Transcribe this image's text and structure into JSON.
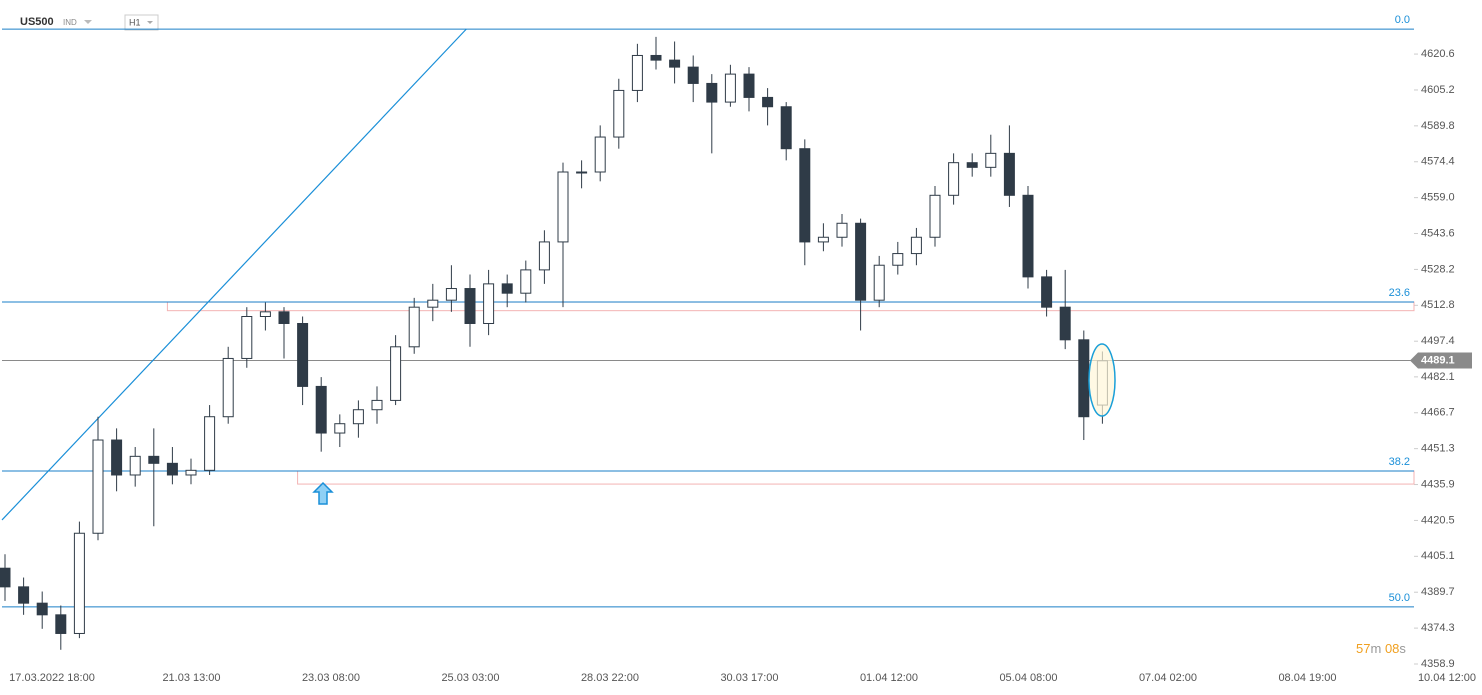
{
  "header": {
    "symbol": "US500",
    "market": "IND",
    "timeframe": "H1"
  },
  "countdown": {
    "minutes": "57",
    "m": "m",
    "seconds": "08",
    "s": "s"
  },
  "chart_data": {
    "type": "candlestick",
    "ylim": [
      4358.9,
      4643.8
    ],
    "yticks": [
      4358.9,
      4374.3,
      4389.7,
      4405.1,
      4420.5,
      4435.9,
      4451.3,
      4466.7,
      4482.1,
      4497.4,
      4512.8,
      4528.2,
      4543.6,
      {
        "value": 4559.0,
        "label": "4559.0"
      },
      4574.4,
      4589.8,
      4605.2,
      4620.6
    ],
    "x_labels": [
      "17.03.2022  18:00",
      "21.03  13:00",
      "23.03  08:00",
      "25.03  03:00",
      "28.03  22:00",
      "30.03  17:00",
      "01.04  12:00",
      "05.04  08:00",
      "07.04  02:00",
      "08.04  19:00",
      "10.04  12:00"
    ],
    "candles": [
      [
        4400,
        4406,
        4386,
        4392
      ],
      [
        4392,
        4396,
        4380,
        4385
      ],
      [
        4385,
        4390,
        4374,
        4380
      ],
      [
        4380,
        4384,
        4365,
        4372
      ],
      [
        4372,
        4420,
        4370,
        4415
      ],
      [
        4415,
        4465,
        4412,
        4455
      ],
      [
        4455,
        4460,
        4433,
        4440
      ],
      [
        4440,
        4452,
        4435,
        4448
      ],
      [
        4448,
        4460,
        4418,
        4445
      ],
      [
        4445,
        4452,
        4436,
        4440
      ],
      [
        4440,
        4447,
        4436,
        4442
      ],
      [
        4442,
        4470,
        4440,
        4465
      ],
      [
        4465,
        4495,
        4462,
        4490
      ],
      [
        4490,
        4512,
        4486,
        4508
      ],
      [
        4508,
        4514,
        4502,
        4510
      ],
      [
        4510,
        4512,
        4490,
        4505
      ],
      [
        4505,
        4508,
        4470,
        4478
      ],
      [
        4478,
        4482,
        4450,
        4458
      ],
      [
        4458,
        4466,
        4452,
        4462
      ],
      [
        4462,
        4472,
        4456,
        4468
      ],
      [
        4468,
        4478,
        4462,
        4472
      ],
      [
        4472,
        4500,
        4470,
        4495
      ],
      [
        4495,
        4516,
        4492,
        4512
      ],
      [
        4512,
        4522,
        4506,
        4515
      ],
      [
        4515,
        4530,
        4510,
        4520
      ],
      [
        4520,
        4526,
        4495,
        4505
      ],
      [
        4505,
        4528,
        4500,
        4522
      ],
      [
        4522,
        4526,
        4512,
        4518
      ],
      [
        4518,
        4532,
        4514,
        4528
      ],
      [
        4528,
        4545,
        4522,
        4540
      ],
      [
        4540,
        4574,
        4512,
        4570
      ],
      [
        4570,
        4575,
        4563,
        4570
      ],
      [
        4570,
        4590,
        4566,
        4585
      ],
      [
        4585,
        4610,
        4580,
        4605
      ],
      [
        4605,
        4625,
        4600,
        4620
      ],
      [
        4620,
        4628,
        4614,
        4618
      ],
      [
        4618,
        4626,
        4608,
        4615
      ],
      [
        4615,
        4620,
        4600,
        4608
      ],
      [
        4608,
        4612,
        4578,
        4600
      ],
      [
        4600,
        4616,
        4598,
        4612
      ],
      [
        4612,
        4615,
        4596,
        4602
      ],
      [
        4602,
        4606,
        4590,
        4598
      ],
      [
        4598,
        4600,
        4575,
        4580
      ],
      [
        4580,
        4584,
        4530,
        4540
      ],
      [
        4540,
        4548,
        4536,
        4542
      ],
      [
        4542,
        4552,
        4538,
        4548
      ],
      [
        4548,
        4550,
        4502,
        4515
      ],
      [
        4515,
        4534,
        4512,
        4530
      ],
      [
        4530,
        4540,
        4526,
        4535
      ],
      [
        4535,
        4546,
        4530,
        4542
      ],
      [
        4542,
        4564,
        4538,
        4560
      ],
      [
        4560,
        4578,
        4556,
        4574
      ],
      [
        4574,
        4578,
        4568,
        4572
      ],
      [
        4572,
        4586,
        4568,
        4578
      ],
      [
        4578,
        4590,
        4555,
        4560
      ],
      [
        4560,
        4564,
        4520,
        4525
      ],
      [
        4525,
        4528,
        4508,
        4512
      ],
      [
        4512,
        4528,
        4494,
        4498
      ],
      [
        4498,
        4502,
        4455,
        4465
      ],
      [
        4470,
        4493,
        4462,
        4489
      ]
    ],
    "current_price": {
      "value": 4489.1,
      "label": "4489.1"
    },
    "levels": [
      {
        "label": "0.0",
        "value": 4631.3
      },
      {
        "label": "23.6",
        "value": 4514.2
      },
      {
        "label": "38.2",
        "value": 4441.7
      },
      {
        "label": "50.0",
        "value": 4383.4
      }
    ],
    "zones": [
      {
        "from": 9,
        "low": 4510.5,
        "high": 4514.2
      },
      {
        "from": 16,
        "low": 4436.1,
        "high": 4441.7
      }
    ],
    "trendline": [
      [
        0,
        4420.7
      ],
      [
        24.8,
        4631.3
      ]
    ],
    "colors": {
      "up": "#ffffff",
      "down": "#2f3b47",
      "outline": "#2f3b47",
      "level": "#1a7fc8",
      "zone": "#f3b3b3",
      "current": "#8a8a8a"
    }
  }
}
